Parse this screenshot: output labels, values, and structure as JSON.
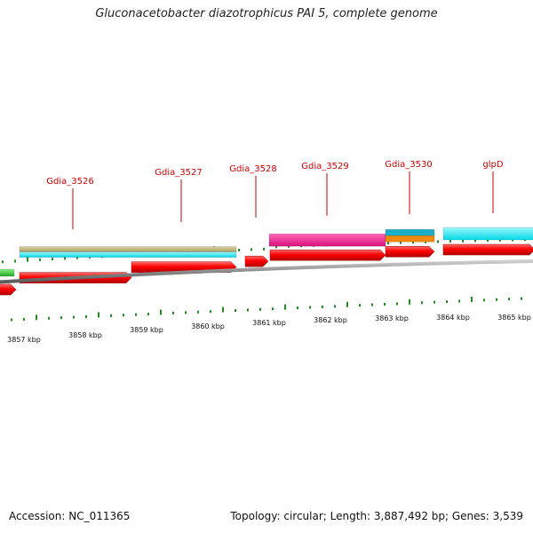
{
  "title": "Gluconacetobacter diazotrophicus PAI 5, complete genome",
  "footer": {
    "accession": "Accession: NC_011365",
    "summary": "Topology: circular; Length: 3,887,492 bp; Genes: 3,539"
  },
  "colors": {
    "label": "#cc0000",
    "tick": "#228b22",
    "cds": "#ff0000",
    "backbone": "#888888",
    "tan": "#b8ae78",
    "cyan": "#00e5ee",
    "magenta": "#ee2293",
    "teal": "#1aaec8",
    "orange": "#f08a0a",
    "green": "#33cc33"
  },
  "gene_labels": [
    {
      "name": "Gdia_3526"
    },
    {
      "name": "Gdia_3527"
    },
    {
      "name": "Gdia_3528"
    },
    {
      "name": "Gdia_3529"
    },
    {
      "name": "Gdia_3530"
    },
    {
      "name": "glpD"
    }
  ],
  "scale_labels": [
    {
      "text": "3857 kbp"
    },
    {
      "text": "3858 kbp"
    },
    {
      "text": "3859 kbp"
    },
    {
      "text": "3860 kbp"
    },
    {
      "text": "3861 kbp"
    },
    {
      "text": "3862 kbp"
    },
    {
      "text": "3863 kbp"
    },
    {
      "text": "3864 kbp"
    },
    {
      "text": "3865 kbp"
    }
  ]
}
